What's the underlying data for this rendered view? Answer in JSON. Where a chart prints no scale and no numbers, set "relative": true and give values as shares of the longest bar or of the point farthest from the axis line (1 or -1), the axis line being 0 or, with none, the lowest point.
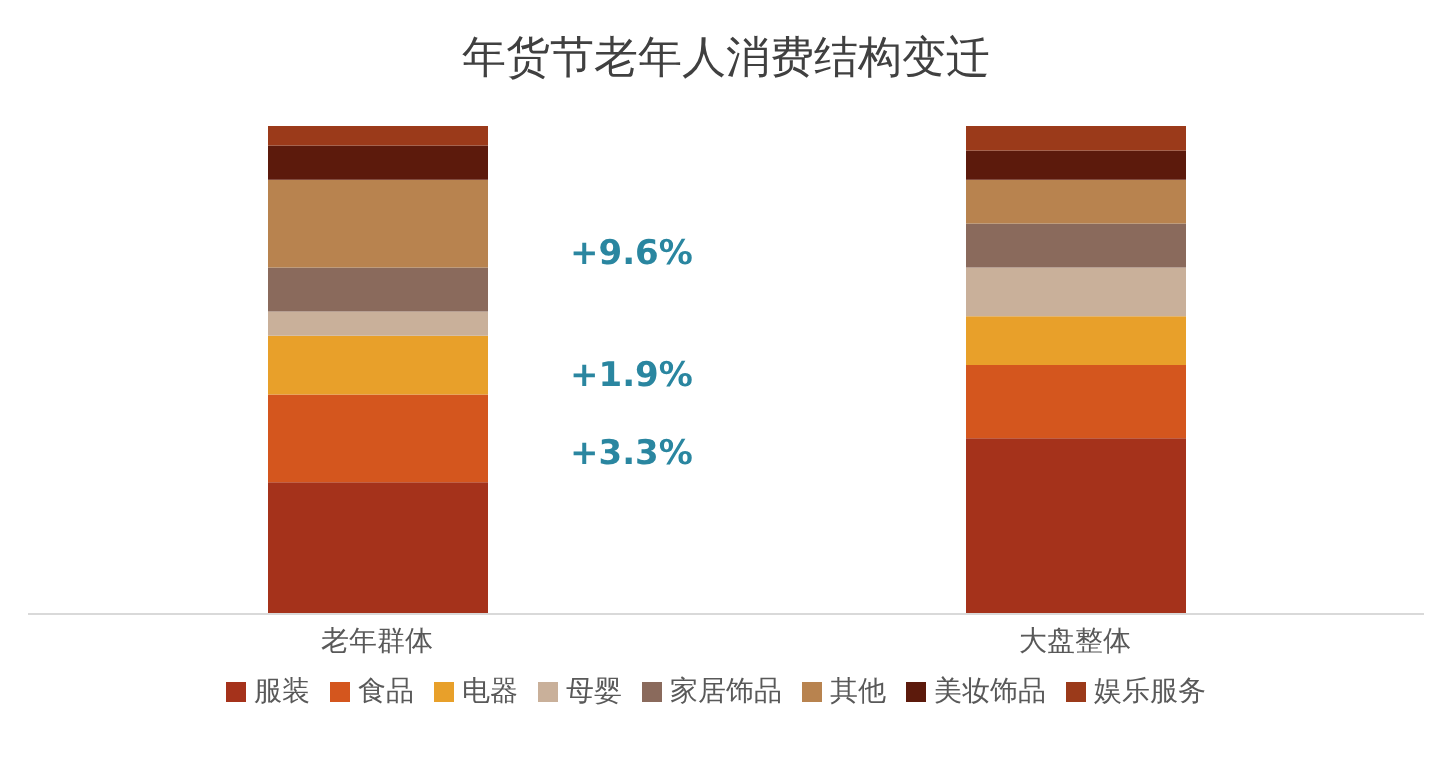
{
  "chart_data": {
    "type": "bar",
    "title": "年货节老年人消费结构变迁",
    "categories": [
      "老年群体",
      "大盘整体"
    ],
    "relative": true,
    "stacked": true,
    "legend": "bottom",
    "series": [
      {
        "name": "服装",
        "color": "#a5321b",
        "values": [
          0.27,
          0.36
        ]
      },
      {
        "name": "食品",
        "color": "#d4561e",
        "values": [
          0.18,
          0.15
        ]
      },
      {
        "name": "电器",
        "color": "#e8a02a",
        "values": [
          0.12,
          0.1
        ]
      },
      {
        "name": "母婴",
        "color": "#c9b09a",
        "values": [
          0.05,
          0.1
        ]
      },
      {
        "name": "家居饰品",
        "color": "#8a6a5c",
        "values": [
          0.09,
          0.09
        ]
      },
      {
        "name": "其他",
        "color": "#b8834f",
        "values": [
          0.18,
          0.09
        ]
      },
      {
        "name": "美妆饰品",
        "color": "#5c1a0c",
        "values": [
          0.07,
          0.06
        ]
      },
      {
        "name": "娱乐服务",
        "color": "#9b3a1a",
        "values": [
          0.04,
          0.05
        ]
      }
    ],
    "annotations": [
      "+9.6%",
      "+1.9%",
      "+3.3%"
    ]
  }
}
